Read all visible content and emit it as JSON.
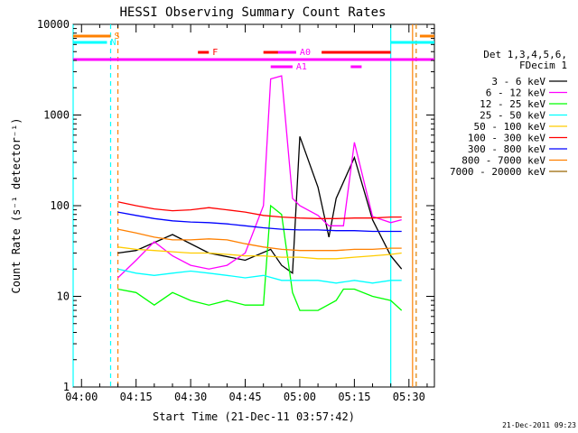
{
  "chart_data": {
    "type": "line",
    "title": "HESSI Observing Summary Count Rates",
    "xlabel": "Start Time (21-Dec-11 03:57:42)",
    "ylabel": "Count Rate (s⁻¹ detector⁻¹)",
    "yscale": "log",
    "ylim": [
      1,
      10000
    ],
    "xlim": [
      "03:57:42",
      "05:37"
    ],
    "x_ticks": [
      "04:00",
      "04:15",
      "04:30",
      "04:45",
      "05:00",
      "05:15",
      "05:30"
    ],
    "y_ticks": [
      "1",
      "10",
      "100",
      "1000",
      "10000"
    ],
    "legend_position": "right",
    "legend_title_lines": [
      "Det 1,3,4,5,6,",
      "FDecim 1"
    ],
    "timestamp": "21-Dec-2011 09:23",
    "series": [
      {
        "name": "3 - 6 keV",
        "color": "#000000",
        "x": [
          "04:10",
          "04:15",
          "04:25",
          "04:35",
          "04:45",
          "04:52",
          "04:55",
          "04:58",
          "05:00",
          "05:05",
          "05:08",
          "05:10",
          "05:15",
          "05:20",
          "05:25",
          "05:28"
        ],
        "values": [
          30,
          32,
          48,
          30,
          25,
          33,
          22,
          18,
          580,
          160,
          45,
          120,
          340,
          70,
          28,
          20
        ]
      },
      {
        "name": "6 - 12 keV",
        "color": "#ff00ff",
        "x": [
          "04:10",
          "04:15",
          "04:20",
          "04:25",
          "04:30",
          "04:35",
          "04:40",
          "04:45",
          "04:50",
          "04:52",
          "04:55",
          "04:58",
          "05:00",
          "05:05",
          "05:08",
          "05:12",
          "05:15",
          "05:20",
          "05:25",
          "05:28"
        ],
        "values": [
          16,
          25,
          40,
          28,
          22,
          20,
          22,
          30,
          100,
          2500,
          2700,
          120,
          100,
          78,
          60,
          60,
          500,
          76,
          65,
          70
        ]
      },
      {
        "name": "12 - 25 keV",
        "color": "#00ff00",
        "x": [
          "04:10",
          "04:15",
          "04:20",
          "04:25",
          "04:30",
          "04:35",
          "04:40",
          "04:45",
          "04:50",
          "04:52",
          "04:55",
          "04:58",
          "05:00",
          "05:05",
          "05:10",
          "05:12",
          "05:15",
          "05:20",
          "05:25",
          "05:28"
        ],
        "values": [
          12,
          11,
          8,
          11,
          9,
          8,
          9,
          8,
          8,
          100,
          80,
          11,
          7,
          7,
          9,
          12,
          12,
          10,
          9,
          7
        ]
      },
      {
        "name": "25 - 50 keV",
        "color": "#00ffff",
        "x": [
          "04:10",
          "04:15",
          "04:20",
          "04:25",
          "04:30",
          "04:35",
          "04:40",
          "04:45",
          "04:50",
          "04:55",
          "05:00",
          "05:05",
          "05:10",
          "05:15",
          "05:20",
          "05:25",
          "05:28"
        ],
        "values": [
          20,
          18,
          17,
          18,
          19,
          18,
          17,
          16,
          17,
          15,
          15,
          15,
          14,
          15,
          14,
          15,
          15
        ]
      },
      {
        "name": "50 - 100 keV",
        "color": "#ffcc00",
        "x": [
          "04:10",
          "04:15",
          "04:20",
          "04:25",
          "04:30",
          "04:35",
          "04:40",
          "04:45",
          "04:50",
          "04:55",
          "05:00",
          "05:05",
          "05:10",
          "05:15",
          "05:20",
          "05:25",
          "05:28"
        ],
        "values": [
          35,
          33,
          32,
          31,
          30,
          30,
          29,
          28,
          28,
          27,
          27,
          26,
          26,
          27,
          28,
          29,
          30
        ]
      },
      {
        "name": "100 - 300 keV",
        "color": "#ff0000",
        "x": [
          "04:10",
          "04:15",
          "04:20",
          "04:25",
          "04:30",
          "04:35",
          "04:40",
          "04:45",
          "04:50",
          "04:55",
          "05:00",
          "05:05",
          "05:10",
          "05:15",
          "05:20",
          "05:25",
          "05:28"
        ],
        "values": [
          110,
          100,
          92,
          88,
          90,
          95,
          90,
          85,
          78,
          75,
          73,
          72,
          72,
          73,
          73,
          75,
          75
        ]
      },
      {
        "name": "300 - 800 keV",
        "color": "#0000ff",
        "x": [
          "04:10",
          "04:15",
          "04:20",
          "04:25",
          "04:30",
          "04:35",
          "04:40",
          "04:45",
          "04:50",
          "04:55",
          "05:00",
          "05:05",
          "05:10",
          "05:15",
          "05:20",
          "05:25",
          "05:28"
        ],
        "values": [
          85,
          78,
          72,
          68,
          66,
          65,
          63,
          60,
          57,
          55,
          54,
          54,
          53,
          53,
          52,
          52,
          52
        ]
      },
      {
        "name": "800 - 7000 keV",
        "color": "#ff8000",
        "x": [
          "04:10",
          "04:15",
          "04:20",
          "04:25",
          "04:30",
          "04:35",
          "04:40",
          "04:45",
          "04:50",
          "04:55",
          "05:00",
          "05:05",
          "05:10",
          "05:15",
          "05:20",
          "05:25",
          "05:28"
        ],
        "values": [
          55,
          50,
          45,
          42,
          42,
          43,
          42,
          38,
          35,
          33,
          32,
          32,
          32,
          33,
          33,
          34,
          34
        ]
      },
      {
        "name": "7000 - 20000 keV",
        "color": "#996600",
        "x": [],
        "values": []
      }
    ],
    "flag_bars": [
      {
        "label": "S",
        "color": "#ff8000",
        "segments": [
          [
            "03:57:42",
            "04:08"
          ],
          [
            "05:33",
            "05:37"
          ]
        ]
      },
      {
        "label": "N",
        "color": "#00ffff",
        "segments": [
          [
            "03:57:42",
            "04:07"
          ],
          [
            "05:25",
            "05:37"
          ]
        ]
      },
      {
        "label": "F",
        "color": "#ff0000",
        "segments": [
          [
            "04:32",
            "04:35"
          ],
          [
            "04:50",
            "04:56"
          ],
          [
            "05:06",
            "05:25"
          ]
        ]
      },
      {
        "label": "A0",
        "color": "#ff00ff",
        "segments": [
          [
            "04:54",
            "04:59"
          ]
        ]
      },
      {
        "label": "A1",
        "color": "#ff00ff",
        "segments": [
          [
            "04:52",
            "04:58"
          ],
          [
            "05:14",
            "05:17"
          ]
        ]
      },
      {
        "label": "",
        "color": "#ff00ff",
        "segments": [
          [
            "03:57:42",
            "05:37"
          ]
        ]
      }
    ],
    "vertical_markers": [
      {
        "time": "03:57:42",
        "color": "#00ffff",
        "style": "solid"
      },
      {
        "time": "04:08",
        "color": "#00ffff",
        "style": "dashed"
      },
      {
        "time": "04:10",
        "color": "#ff8000",
        "style": "dashed"
      },
      {
        "time": "05:25",
        "color": "#00ffff",
        "style": "solid"
      },
      {
        "time": "05:31",
        "color": "#ff8000",
        "style": "solid"
      },
      {
        "time": "05:32",
        "color": "#00ffff",
        "style": "dashed"
      },
      {
        "time": "05:32",
        "color": "#ff8000",
        "style": "dashed"
      }
    ]
  }
}
